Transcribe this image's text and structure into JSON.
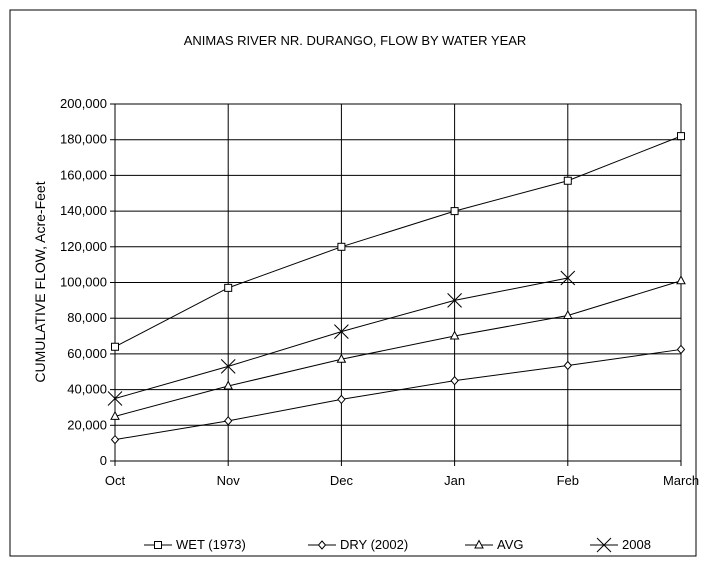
{
  "chart_data": {
    "type": "line",
    "title": "ANIMAS RIVER NR. DURANGO, FLOW BY WATER YEAR",
    "xlabel": "",
    "ylabel": "CUMULATIVE FLOW, Acre-Feet",
    "categories": [
      "Oct",
      "Nov",
      "Dec",
      "Jan",
      "Feb",
      "March"
    ],
    "ylim": [
      0,
      200000
    ],
    "y_ticks": [
      0,
      20000,
      40000,
      60000,
      80000,
      100000,
      120000,
      140000,
      160000,
      180000,
      200000
    ],
    "y_tick_labels": [
      "0",
      "20,000",
      "40,000",
      "60,000",
      "80,000",
      "100,000",
      "120,000",
      "140,000",
      "160,000",
      "180,000",
      "200,000"
    ],
    "grid": true,
    "legend_position": "bottom",
    "series": [
      {
        "name": "WET (1973)",
        "marker": "square",
        "values": [
          64000,
          97000,
          120000,
          140000,
          157000,
          182000
        ]
      },
      {
        "name": "DRY (2002)",
        "marker": "diamond",
        "values": [
          12000,
          22500,
          34500,
          45000,
          53500,
          62500
        ]
      },
      {
        "name": "AVG",
        "marker": "triangle",
        "values": [
          25000,
          42000,
          57000,
          70000,
          81500,
          101000
        ]
      },
      {
        "name": "2008",
        "marker": "x",
        "values": [
          35000,
          53000,
          72500,
          90000,
          102500,
          null
        ]
      }
    ]
  }
}
